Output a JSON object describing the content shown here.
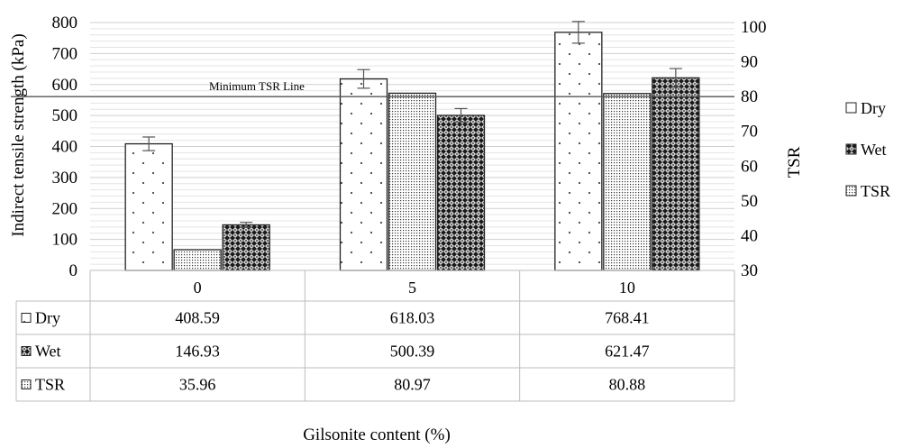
{
  "chart_data": {
    "type": "bar",
    "title": "",
    "xlabel": "Gilsonite content (%)",
    "ylabel": "Indirect tensile strength (kPa)",
    "y2label": "TSR",
    "categories": [
      "0",
      "5",
      "10"
    ],
    "ylim": [
      0,
      800
    ],
    "yticks": [
      "0",
      "100",
      "200",
      "300",
      "400",
      "500",
      "600",
      "700",
      "800"
    ],
    "y2lim": [
      30,
      100
    ],
    "y2ticks": [
      "30",
      "40",
      "50",
      "60",
      "70",
      "80",
      "90",
      "100"
    ],
    "series": [
      {
        "name": "Dry",
        "axis": "left",
        "pattern": "dots",
        "values": [
          408.59,
          618.03,
          768.41
        ],
        "errors": [
          22,
          30,
          35
        ]
      },
      {
        "name": "TSR",
        "axis": "right",
        "pattern": "fine-dots",
        "values": [
          35.96,
          80.97,
          80.88
        ],
        "errors": [
          0,
          0,
          0
        ]
      },
      {
        "name": "Wet",
        "axis": "left",
        "pattern": "checker",
        "values": [
          146.93,
          500.39,
          621.47
        ],
        "errors": [
          8,
          22,
          30
        ]
      }
    ],
    "reference_line": {
      "label": "Minimum TSR Line",
      "value": 80,
      "axis": "right"
    },
    "grid": true,
    "legend_position": "right",
    "legend": [
      "Dry",
      "Wet",
      "TSR"
    ],
    "table": {
      "rows": [
        {
          "name": "Dry",
          "values": [
            "408.59",
            "618.03",
            "768.41"
          ]
        },
        {
          "name": "Wet",
          "values": [
            "146.93",
            "500.39",
            "621.47"
          ]
        },
        {
          "name": "TSR",
          "values": [
            "35.96",
            "80.97",
            "80.88"
          ]
        }
      ]
    }
  }
}
